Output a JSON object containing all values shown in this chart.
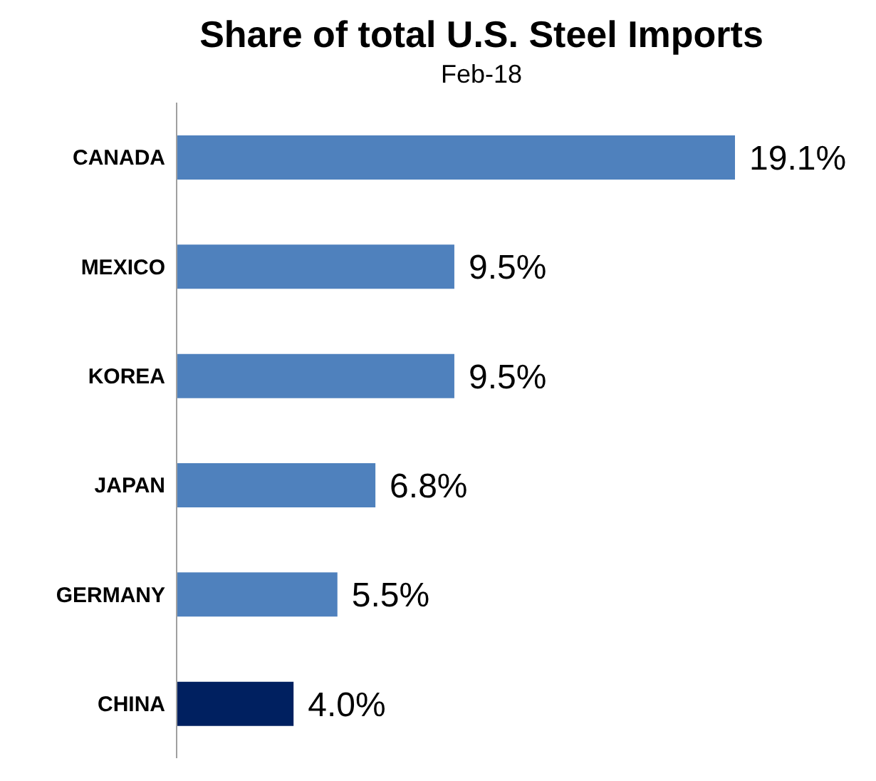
{
  "chart_data": {
    "type": "bar",
    "orientation": "horizontal",
    "title": "Share of total U.S. Steel Imports",
    "subtitle": "Feb-18",
    "categories": [
      "CANADA",
      "MEXICO",
      "KOREA",
      "JAPAN",
      "GERMANY",
      "CHINA"
    ],
    "values": [
      19.1,
      9.5,
      9.5,
      6.8,
      5.5,
      4.0
    ],
    "colors": [
      "#4f81bd",
      "#4f81bd",
      "#4f81bd",
      "#4f81bd",
      "#4f81bd",
      "#002060"
    ],
    "value_labels": [
      "19.1%",
      "9.5%",
      "9.5%",
      "6.8%",
      "5.5%",
      "4.0%"
    ],
    "legend": false,
    "grid": false,
    "tick_labels": "y"
  }
}
